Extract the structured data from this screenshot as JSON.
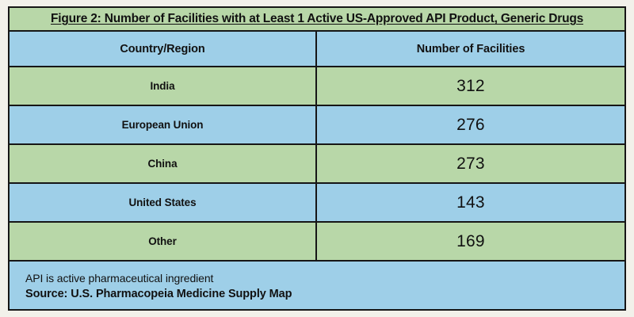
{
  "figure": {
    "title": "Figure 2: Number of Facilities with at Least 1 Active US-Approved API Product, Generic Drugs",
    "columns": {
      "country": "Country/Region",
      "facilities": "Number of Facilities"
    },
    "rows": [
      {
        "country": "India",
        "facilities": "312"
      },
      {
        "country": "European Union",
        "facilities": "276"
      },
      {
        "country": "China",
        "facilities": "273"
      },
      {
        "country": "United States",
        "facilities": "143"
      },
      {
        "country": "Other",
        "facilities": "169"
      }
    ],
    "footnote": "API is active pharmaceutical ingredient",
    "source": "Source: U.S. Pharmacopeia Medicine Supply Map"
  },
  "colors": {
    "row_green": "#b8d7a8",
    "row_blue": "#9ecfe8",
    "page_background": "#f2f1ea",
    "border": "#161616"
  },
  "chart_data": {
    "type": "table",
    "title": "Figure 2: Number of Facilities with at Least 1 Active US-Approved API Product, Generic Drugs",
    "columns": [
      "Country/Region",
      "Number of Facilities"
    ],
    "categories": [
      "India",
      "European Union",
      "China",
      "United States",
      "Other"
    ],
    "values": [
      312,
      276,
      273,
      143,
      169
    ],
    "annotations": [
      "API is active pharmaceutical ingredient",
      "Source: U.S. Pharmacopeia Medicine Supply Map"
    ]
  }
}
